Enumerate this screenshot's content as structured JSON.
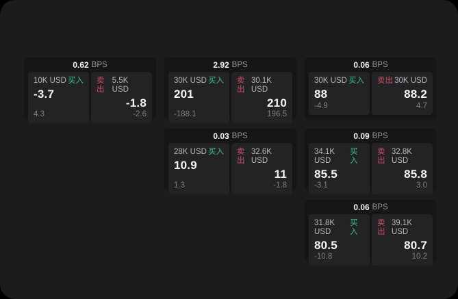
{
  "labels": {
    "bps_unit": "BPS",
    "buy": "买入",
    "sell": "卖出"
  },
  "colors": {
    "background": "#000000",
    "panel": "#1c1c1e",
    "card": "#161618",
    "cell": "#232326",
    "buy_green": "#3fbf7f",
    "sell_red": "#cd4f63",
    "text_primary": "#f5f5f7",
    "text_secondary": "#b6b6bb",
    "text_dim": "#7f7f85"
  },
  "cards": [
    {
      "bps": "0.62",
      "buy": {
        "amount": "10K USD",
        "price": "-3.7",
        "delta": "4.3"
      },
      "sell": {
        "amount": "5.5K USD",
        "price": "-1.8",
        "delta": "-2.6"
      }
    },
    {
      "bps": "2.92",
      "buy": {
        "amount": "30K USD",
        "price": "201",
        "delta": "-188.1"
      },
      "sell": {
        "amount": "30.1K USD",
        "price": "210",
        "delta": "196.5"
      }
    },
    {
      "bps": "0.06",
      "buy": {
        "amount": "30K USD",
        "price": "88",
        "delta": "-4.9"
      },
      "sell": {
        "amount": "30K USD",
        "price": "88.2",
        "delta": "4.7"
      }
    },
    {
      "bps": "0.03",
      "buy": {
        "amount": "28K USD",
        "price": "10.9",
        "delta": "1.3"
      },
      "sell": {
        "amount": "32.6K USD",
        "price": "11",
        "delta": "-1.8"
      }
    },
    {
      "bps": "0.09",
      "buy": {
        "amount": "34.1K USD",
        "price": "85.5",
        "delta": "-3.1"
      },
      "sell": {
        "amount": "32.8K USD",
        "price": "85.8",
        "delta": "3.0"
      }
    },
    {
      "bps": "0.06",
      "buy": {
        "amount": "31.8K USD",
        "price": "80.5",
        "delta": "-10.8"
      },
      "sell": {
        "amount": "39.1K USD",
        "price": "80.7",
        "delta": "10.2"
      }
    }
  ]
}
